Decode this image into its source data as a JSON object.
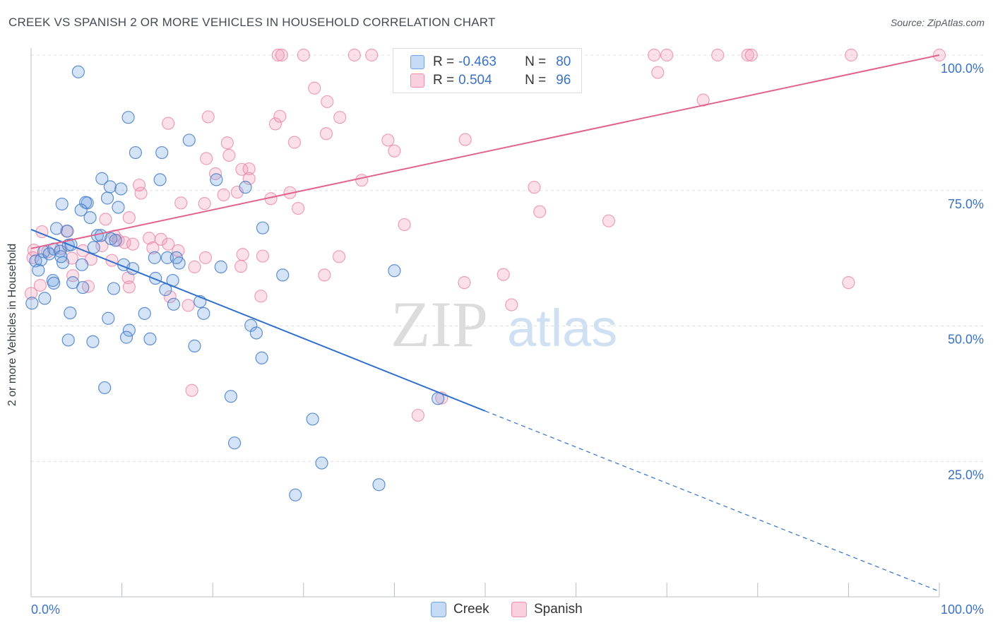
{
  "header": {
    "title": "CREEK VS SPANISH 2 OR MORE VEHICLES IN HOUSEHOLD CORRELATION CHART",
    "source": "Source: ZipAtlas.com"
  },
  "watermark": {
    "zip": "ZIP",
    "atlas": "atlas"
  },
  "legend": {
    "r_label": "R =",
    "n_label": "N =",
    "rows": [
      {
        "series": "Creek",
        "r": "-0.463",
        "n": "80",
        "color": "#6fa3e0"
      },
      {
        "series": "Spanish",
        "r": "0.504",
        "n": "96",
        "color": "#f08fb0"
      }
    ]
  },
  "bottom_legend": {
    "creek": "Creek",
    "spanish": "Spanish"
  },
  "chart_data": {
    "type": "scatter",
    "title": "CREEK VS SPANISH 2 OR MORE VEHICLES IN HOUSEHOLD CORRELATION CHART",
    "xlabel": "",
    "ylabel": "2 or more Vehicles in Household",
    "xlim": [
      0,
      100
    ],
    "ylim": [
      0,
      100
    ],
    "x_tick_labels": [
      "0.0%",
      "100.0%"
    ],
    "y_tick_labels": [
      "25.0%",
      "50.0%",
      "75.0%",
      "100.0%"
    ],
    "y_ticks": [
      25,
      50,
      75,
      100
    ],
    "grid": true,
    "legend_position": "top-center",
    "colors": {
      "Creek": "#6fa3e0",
      "Spanish": "#f08fb0",
      "creek_line": "#3070cc",
      "spanish_line": "#e0638f"
    },
    "series": [
      {
        "name": "Creek",
        "r": -0.463,
        "n": 80,
        "trend": {
          "x": [
            0,
            50
          ],
          "y": [
            67.8,
            34.3
          ],
          "dashed_to": [
            100,
            1.0
          ]
        },
        "points": [
          [
            5.2,
            96.9
          ],
          [
            10.7,
            88.5
          ],
          [
            11.5,
            82.0
          ],
          [
            14.4,
            82.0
          ],
          [
            17.4,
            84.3
          ],
          [
            7.8,
            77.2
          ],
          [
            14.2,
            77.0
          ],
          [
            8.7,
            75.7
          ],
          [
            9.9,
            75.3
          ],
          [
            20.4,
            77.0
          ],
          [
            23.6,
            75.6
          ],
          [
            3.4,
            72.5
          ],
          [
            6.2,
            72.7
          ],
          [
            8.4,
            73.6
          ],
          [
            6.0,
            72.8
          ],
          [
            9.6,
            71.9
          ],
          [
            5.5,
            71.4
          ],
          [
            6.5,
            70.0
          ],
          [
            2.8,
            68.0
          ],
          [
            4.0,
            67.5
          ],
          [
            7.3,
            66.7
          ],
          [
            7.7,
            66.7
          ],
          [
            8.8,
            66.1
          ],
          [
            25.5,
            68.1
          ],
          [
            1.4,
            63.7
          ],
          [
            2.5,
            64.2
          ],
          [
            3.2,
            63.8
          ],
          [
            4.1,
            64.9
          ],
          [
            4.4,
            65.0
          ],
          [
            0.5,
            62.0
          ],
          [
            1.1,
            62.2
          ],
          [
            3.5,
            61.7
          ],
          [
            5.6,
            61.3
          ],
          [
            10.2,
            61.3
          ],
          [
            11.2,
            60.6
          ],
          [
            15.0,
            62.6
          ],
          [
            16.3,
            61.6
          ],
          [
            20.9,
            60.9
          ],
          [
            0.8,
            60.3
          ],
          [
            2.4,
            58.4
          ],
          [
            2.5,
            57.9
          ],
          [
            4.6,
            58.0
          ],
          [
            5.7,
            57.1
          ],
          [
            9.1,
            56.9
          ],
          [
            13.7,
            58.8
          ],
          [
            14.8,
            56.7
          ],
          [
            15.6,
            58.4
          ],
          [
            27.7,
            59.4
          ],
          [
            40.0,
            60.2
          ],
          [
            1.5,
            55.1
          ],
          [
            15.7,
            54.0
          ],
          [
            18.6,
            54.5
          ],
          [
            0.1,
            54.2
          ],
          [
            4.3,
            52.4
          ],
          [
            8.5,
            51.4
          ],
          [
            12.5,
            52.3
          ],
          [
            19.0,
            52.3
          ],
          [
            24.2,
            50.1
          ],
          [
            10.8,
            49.2
          ],
          [
            10.5,
            47.9
          ],
          [
            24.8,
            48.7
          ],
          [
            4.1,
            47.4
          ],
          [
            6.8,
            47.1
          ],
          [
            13.1,
            47.6
          ],
          [
            18.0,
            46.3
          ],
          [
            25.4,
            44.1
          ],
          [
            8.1,
            38.6
          ],
          [
            22.0,
            37.0
          ],
          [
            44.8,
            36.6
          ],
          [
            31.0,
            32.8
          ],
          [
            22.4,
            28.4
          ],
          [
            32.0,
            24.7
          ],
          [
            38.3,
            20.7
          ],
          [
            29.1,
            18.8
          ],
          [
            13.6,
            62.6
          ],
          [
            16.0,
            62.6
          ],
          [
            9.3,
            65.8
          ],
          [
            2.0,
            63.3
          ],
          [
            6.9,
            64.5
          ],
          [
            3.3,
            62.8
          ]
        ]
      },
      {
        "name": "Spanish",
        "r": 0.504,
        "n": 96,
        "trend": {
          "x": [
            0,
            100
          ],
          "y": [
            64.3,
            100
          ]
        },
        "points": [
          [
            27.2,
            100
          ],
          [
            27.6,
            100
          ],
          [
            30.0,
            100
          ],
          [
            35.6,
            100
          ],
          [
            37.5,
            100
          ],
          [
            45.0,
            100
          ],
          [
            49.0,
            100
          ],
          [
            50.3,
            100
          ],
          [
            55.6,
            100
          ],
          [
            68.6,
            100
          ],
          [
            70.0,
            100
          ],
          [
            75.6,
            100
          ],
          [
            78.9,
            100
          ],
          [
            79.3,
            100
          ],
          [
            90.3,
            100
          ],
          [
            100.0,
            100
          ],
          [
            69.0,
            96.8
          ],
          [
            31.2,
            93.9
          ],
          [
            32.6,
            91.4
          ],
          [
            74.0,
            91.7
          ],
          [
            15.1,
            87.4
          ],
          [
            19.5,
            88.6
          ],
          [
            26.9,
            87.3
          ],
          [
            27.4,
            88.7
          ],
          [
            34.0,
            88.5
          ],
          [
            32.5,
            85.5
          ],
          [
            39.3,
            84.3
          ],
          [
            47.8,
            84.4
          ],
          [
            21.6,
            83.8
          ],
          [
            29.0,
            83.9
          ],
          [
            40.0,
            82.3
          ],
          [
            19.3,
            80.9
          ],
          [
            21.8,
            81.5
          ],
          [
            23.2,
            78.9
          ],
          [
            24.0,
            79.0
          ],
          [
            20.3,
            78.1
          ],
          [
            24.0,
            77.2
          ],
          [
            36.4,
            76.9
          ],
          [
            11.9,
            76.0
          ],
          [
            55.4,
            75.6
          ],
          [
            12.1,
            74.5
          ],
          [
            21.2,
            74.2
          ],
          [
            22.7,
            74.7
          ],
          [
            28.5,
            74.6
          ],
          [
            26.4,
            73.5
          ],
          [
            16.5,
            72.7
          ],
          [
            19.1,
            72.6
          ],
          [
            29.4,
            71.7
          ],
          [
            56.0,
            71.1
          ],
          [
            8.2,
            69.7
          ],
          [
            10.8,
            70.0
          ],
          [
            63.6,
            69.4
          ],
          [
            41.1,
            68.7
          ],
          [
            1.2,
            67.4
          ],
          [
            3.9,
            67.5
          ],
          [
            9.2,
            66.6
          ],
          [
            13.0,
            66.2
          ],
          [
            14.3,
            66.0
          ],
          [
            15.1,
            65.1
          ],
          [
            9.6,
            65.8
          ],
          [
            10.3,
            65.4
          ],
          [
            11.2,
            65.1
          ],
          [
            13.4,
            64.4
          ],
          [
            0.3,
            64.0
          ],
          [
            1.8,
            63.7
          ],
          [
            3.3,
            64.3
          ],
          [
            5.7,
            63.9
          ],
          [
            7.8,
            64.8
          ],
          [
            16.2,
            63.9
          ],
          [
            19.2,
            62.6
          ],
          [
            23.3,
            63.2
          ],
          [
            25.5,
            62.9
          ],
          [
            33.9,
            62.8
          ],
          [
            0.2,
            62.6
          ],
          [
            4.5,
            62.5
          ],
          [
            6.6,
            62.3
          ],
          [
            8.9,
            62.1
          ],
          [
            18.0,
            60.9
          ],
          [
            23.1,
            61.0
          ],
          [
            4.6,
            59.3
          ],
          [
            10.7,
            58.9
          ],
          [
            32.3,
            59.4
          ],
          [
            52.0,
            59.5
          ],
          [
            1.0,
            57.5
          ],
          [
            6.3,
            57.3
          ],
          [
            10.8,
            57.2
          ],
          [
            15.3,
            55.4
          ],
          [
            25.3,
            55.5
          ],
          [
            47.7,
            58.0
          ],
          [
            90.0,
            58.0
          ],
          [
            17.3,
            53.8
          ],
          [
            52.9,
            53.9
          ],
          [
            17.7,
            38.1
          ],
          [
            45.2,
            36.7
          ],
          [
            42.6,
            33.5
          ],
          [
            0.0,
            56.0
          ]
        ]
      }
    ]
  }
}
